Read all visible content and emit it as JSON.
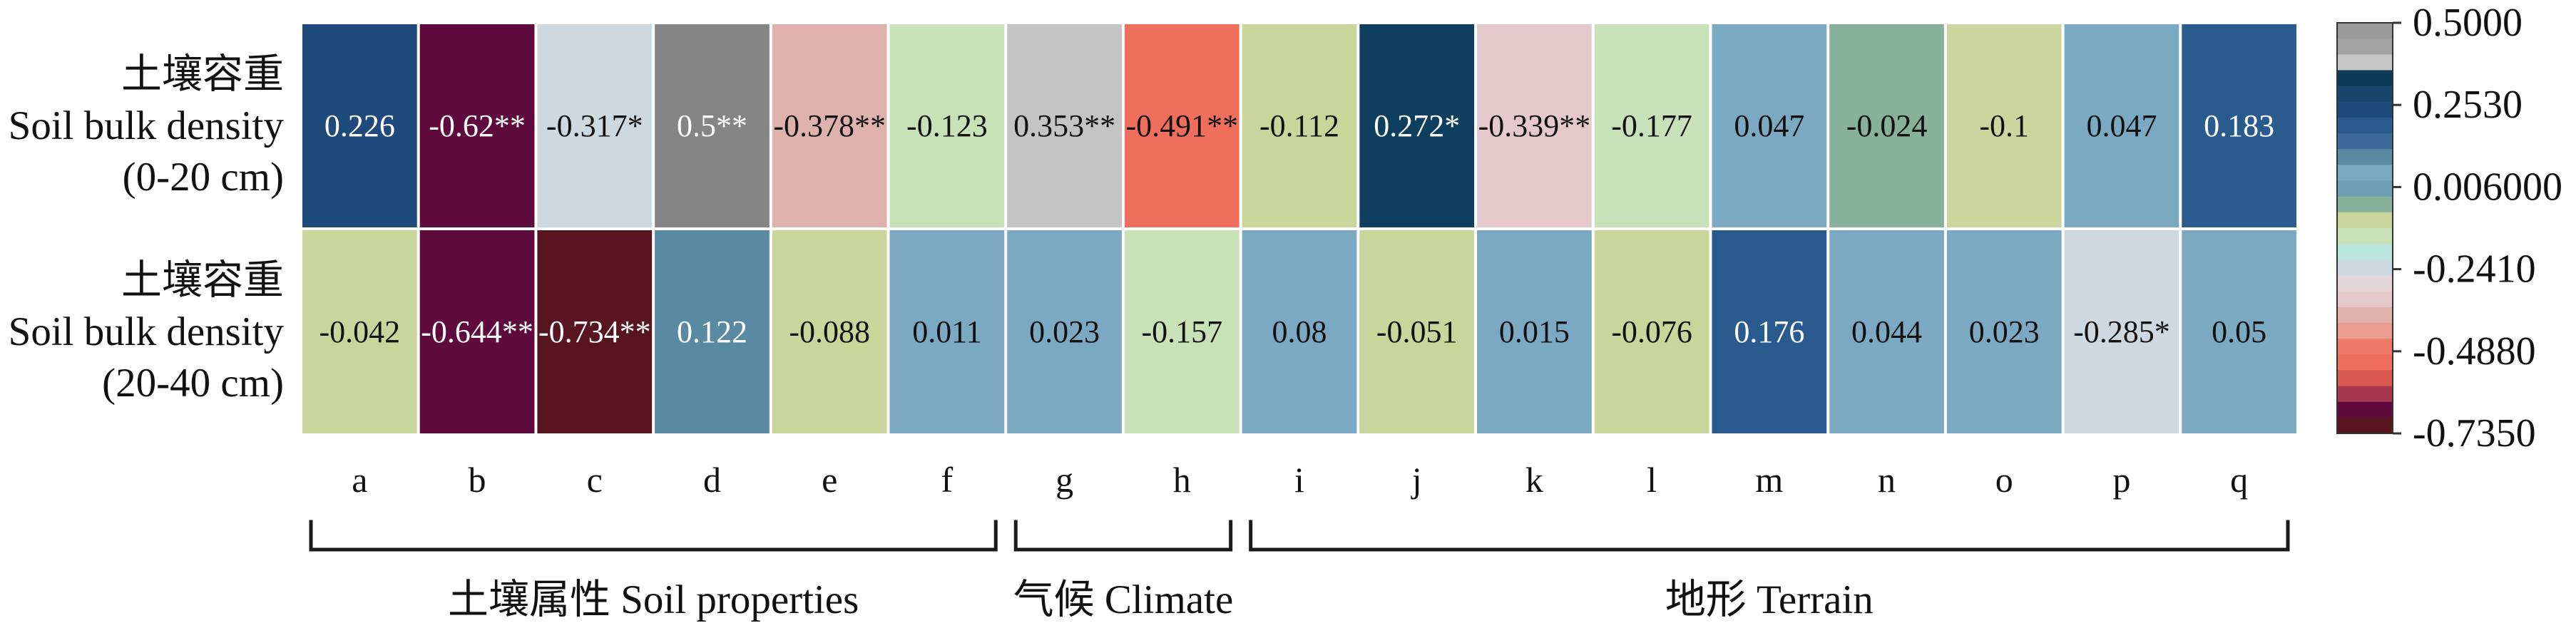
{
  "chart_data": {
    "type": "heatmap",
    "columns": [
      "a",
      "b",
      "c",
      "d",
      "e",
      "f",
      "g",
      "h",
      "i",
      "j",
      "k",
      "l",
      "m",
      "n",
      "o",
      "p",
      "q"
    ],
    "rows": [
      {
        "label": [
          "土壤容重",
          "Soil bulk density",
          "(0-20 cm)"
        ],
        "values": [
          "0.226",
          "-0.62**",
          "-0.317*",
          "0.5**",
          "-0.378**",
          "-0.123",
          "0.353**",
          "-0.491**",
          "-0.112",
          "0.272*",
          "-0.339**",
          "-0.177",
          "0.047",
          "-0.024",
          "-0.1",
          "0.047",
          "0.183"
        ],
        "colors": [
          "#1f4b7c",
          "#5f0a3c",
          "#cdd8e0",
          "#858585",
          "#e0b2ad",
          "#c9e1b6",
          "#c4c4c4",
          "#ef6f5c",
          "#c9d59b",
          "#0e3f5e",
          "#e6c9cd",
          "#c9e1b8",
          "#7aa9c1",
          "#88b19b",
          "#ccd59d",
          "#7aa9c1",
          "#2a5b8e"
        ]
      },
      {
        "label": [
          "土壤容重",
          "Soil bulk density",
          "(20-40 cm)"
        ],
        "values": [
          "-0.042",
          "-0.644**",
          "-0.734**",
          "0.122",
          "-0.088",
          "0.011",
          "0.023",
          "-0.157",
          "0.08",
          "-0.051",
          "0.015",
          "-0.076",
          "0.176",
          "0.044",
          "0.023",
          "-0.285*",
          "0.05"
        ],
        "colors": [
          "#c9d59b",
          "#5f0a3c",
          "#58141f",
          "#5a8aa1",
          "#c9d59b",
          "#7aa9c1",
          "#7aa9c1",
          "#c9e1b6",
          "#7aa9c1",
          "#c9d59b",
          "#7aa9c1",
          "#c9d59b",
          "#2a5b8e",
          "#7aa9c1",
          "#7aa9c1",
          "#cdd8e0",
          "#7aa9c1"
        ]
      }
    ],
    "groups": [
      {
        "label": "土壤属性 Soil properties",
        "span": [
          "a",
          "f"
        ]
      },
      {
        "label": "气候 Climate",
        "span": [
          "g",
          "h"
        ]
      },
      {
        "label": "地形 Terrain",
        "span": [
          "i",
          "q"
        ]
      }
    ],
    "colorbar": {
      "range": [
        -0.735,
        0.5
      ],
      "ticks": [
        "0.5000",
        "0.2530",
        "0.006000",
        "-0.2410",
        "-0.4880",
        "-0.7350"
      ],
      "colors": [
        "#9b9b9b",
        "#a3a3a3",
        "#c6c6c6",
        "#0d3a56",
        "#16476b",
        "#1f4b7c",
        "#2a5b8e",
        "#3c6b99",
        "#5a8aa1",
        "#7aa9c1",
        "#6f9fb3",
        "#88b19b",
        "#c9d59b",
        "#c9e1b6",
        "#b9e5dd",
        "#cdd8e0",
        "#e4d5d8",
        "#e6c9cd",
        "#e0b2ad",
        "#e99c8f",
        "#ef7a68",
        "#ef6f5c",
        "#d85a50",
        "#a8384f",
        "#5f0a3c",
        "#58141f"
      ]
    }
  }
}
